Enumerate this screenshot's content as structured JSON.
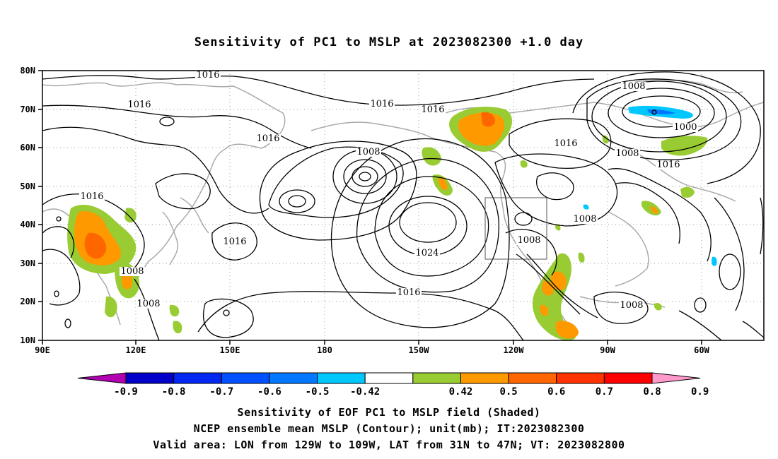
{
  "title": "Sensitivity of PC1 to MSLP at 2023082300 +1.0 day",
  "lat_labels": [
    "80N",
    "70N",
    "60N",
    "50N",
    "40N",
    "30N",
    "20N",
    "10N"
  ],
  "lon_labels": [
    "90E",
    "120E",
    "150E",
    "180",
    "150W",
    "120W",
    "90W",
    "60W"
  ],
  "contour_labels": [
    {
      "text": "1016",
      "pos": "north pacific top"
    },
    {
      "text": "1016",
      "pos": "siberia"
    },
    {
      "text": "1016",
      "pos": "bering"
    },
    {
      "text": "1016",
      "pos": "gulf of alaska"
    },
    {
      "text": "1016",
      "pos": "alaska"
    },
    {
      "text": "1016",
      "pos": "hudson"
    },
    {
      "text": "1016",
      "pos": "labrador"
    },
    {
      "text": "1016",
      "pos": "central asia"
    },
    {
      "text": "1016",
      "pos": "japan"
    },
    {
      "text": "1016",
      "pos": "subtropical pacific"
    },
    {
      "text": "1008",
      "pos": "aleutian low"
    },
    {
      "text": "1008",
      "pos": "greenland top"
    },
    {
      "text": "1000",
      "pos": "greenland low"
    },
    {
      "text": "1008",
      "pos": "baffin"
    },
    {
      "text": "1008",
      "pos": "central us"
    },
    {
      "text": "1008",
      "pos": "california"
    },
    {
      "text": "1008",
      "pos": "caribbean"
    },
    {
      "text": "1008",
      "pos": "south china"
    },
    {
      "text": "1008",
      "pos": "philippines"
    },
    {
      "text": "1024",
      "pos": "pacific high"
    }
  ],
  "colorbar": {
    "labels": [
      "-0.9",
      "-0.8",
      "-0.7",
      "-0.6",
      "-0.5",
      "-0.42",
      "0.42",
      "0.5",
      "0.6",
      "0.7",
      "0.8",
      "0.9"
    ],
    "colors": [
      "#b000b0",
      "#0000c8",
      "#0028f0",
      "#0050ff",
      "#0078ff",
      "#00c8ff",
      "#ffffff",
      "#99cc33",
      "#ff9900",
      "#ff6600",
      "#ff3300",
      "#ff0000",
      "#ff99cc"
    ]
  },
  "captions": {
    "line1": "Sensitivity of EOF PC1 to MSLP field (Shaded)",
    "line2": "NCEP ensemble mean MSLP (Contour); unit(mb); IT:2023082300",
    "line3": "Valid area: LON from 129W to 109W, LAT from 31N to 47N; VT: 2023082800"
  },
  "valid_area_box": {
    "lon_min": "129W",
    "lon_max": "109W",
    "lat_min": "31N",
    "lat_max": "47N"
  }
}
